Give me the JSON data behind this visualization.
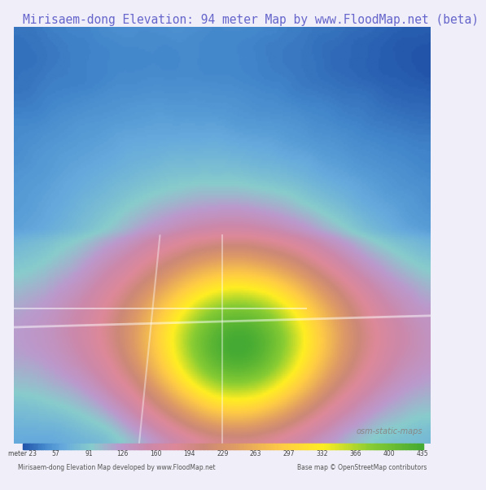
{
  "title": "Mirisaem-dong Elevation: 94 meter Map by www.FloodMap.net (beta)",
  "title_color": "#6666cc",
  "title_fontsize": 10.5,
  "colorbar_labels": [
    "meter 23",
    "57",
    "91",
    "126",
    "160",
    "194",
    "229",
    "263",
    "297",
    "332",
    "366",
    "400",
    "435"
  ],
  "colorbar_colors": [
    "#4488cc",
    "#66aadd",
    "#88ccee",
    "#aaddcc",
    "#cc99bb",
    "#dd88aa",
    "#cc7799",
    "#dd9977",
    "#eebb88",
    "#ffdd66",
    "#ffff44",
    "#aadd44",
    "#44bb44"
  ],
  "bottom_left_text": "Mirisaem-dong Elevation Map developed by www.FloodMap.net",
  "bottom_right_text": "Base map © OpenStreetMap contributors",
  "osm_watermark": "osm-static-maps",
  "bg_color": "#f0eef8",
  "map_bg": "#ddd8f0"
}
